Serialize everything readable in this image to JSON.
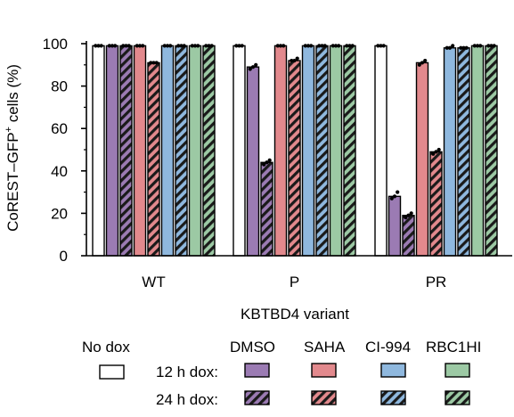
{
  "chart_data": {
    "type": "bar",
    "xlabel": "KBTBD4 variant",
    "ylabel": "CoREST–GFP",
    "ylabel_sup": "+",
    "ylabel_suffix": " cells (%)",
    "ylim": [
      0,
      100
    ],
    "yticks": [
      "0",
      "20",
      "40",
      "60",
      "80",
      "100"
    ],
    "categories": [
      "WT",
      "P",
      "PR"
    ],
    "series": [
      {
        "name": "No dox",
        "color": "#ffffff",
        "hatched": false,
        "values": [
          99,
          99,
          99
        ]
      },
      {
        "name": "DMSO 12 h dox",
        "color": "#9b7bb3",
        "hatched": false,
        "values": [
          99,
          89,
          28
        ]
      },
      {
        "name": "DMSO 24 h dox",
        "color": "#9b7bb3",
        "hatched": true,
        "values": [
          99,
          44,
          19
        ]
      },
      {
        "name": "SAHA 12 h dox",
        "color": "#e2898d",
        "hatched": false,
        "values": [
          99,
          99,
          91
        ]
      },
      {
        "name": "SAHA 24 h dox",
        "color": "#e2898d",
        "hatched": true,
        "values": [
          91,
          92,
          49
        ]
      },
      {
        "name": "CI-994 12 h dox",
        "color": "#8fb8de",
        "hatched": false,
        "values": [
          99,
          99,
          98
        ]
      },
      {
        "name": "CI-994 24 h dox",
        "color": "#8fb8de",
        "hatched": true,
        "values": [
          99,
          99,
          98
        ]
      },
      {
        "name": "RBC1HI 12 h dox",
        "color": "#9cc9a4",
        "hatched": false,
        "values": [
          99,
          99,
          99
        ]
      },
      {
        "name": "RBC1HI 24 h dox",
        "color": "#9cc9a4",
        "hatched": true,
        "values": [
          99,
          99,
          99
        ]
      }
    ],
    "points": [
      [
        [
          99,
          99,
          99
        ],
        [
          99,
          99,
          99
        ],
        [
          99,
          99,
          99
        ]
      ],
      [
        [
          99,
          99,
          99
        ],
        [
          88,
          89,
          90
        ],
        [
          27,
          28,
          30
        ]
      ],
      [
        [
          99,
          99,
          99
        ],
        [
          43,
          44,
          45
        ],
        [
          18,
          19,
          20
        ]
      ],
      [
        [
          99,
          99,
          99
        ],
        [
          99,
          99,
          99
        ],
        [
          90,
          91,
          92
        ]
      ],
      [
        [
          91,
          91,
          91
        ],
        [
          92,
          92,
          93
        ],
        [
          48,
          49,
          50
        ]
      ],
      [
        [
          99,
          99,
          99
        ],
        [
          99,
          99,
          99
        ],
        [
          98,
          98,
          99
        ]
      ],
      [
        [
          99,
          99,
          99
        ],
        [
          99,
          99,
          99
        ],
        [
          98,
          98,
          98
        ]
      ],
      [
        [
          99,
          99,
          99
        ],
        [
          99,
          99,
          99
        ],
        [
          99,
          99,
          99
        ]
      ],
      [
        [
          99,
          99,
          99
        ],
        [
          99,
          99,
          99
        ],
        [
          99,
          99,
          99
        ]
      ]
    ],
    "grid": false
  },
  "legend": {
    "no_dox": "No dox",
    "dmso": "DMSO",
    "saha": "SAHA",
    "ci994": "CI-994",
    "rbc1hi": "RBC1HI",
    "row_12h": "12 h dox:",
    "row_24h": "24 h dox:"
  }
}
